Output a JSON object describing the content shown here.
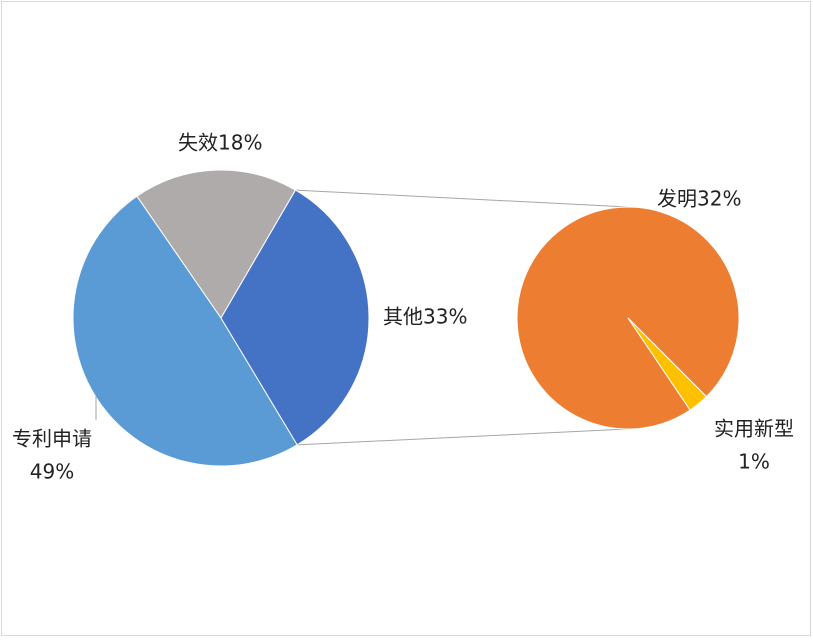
{
  "chart_data": {
    "type": "pie-of-pie",
    "categories": [
      "专利申请",
      "失效",
      "其他"
    ],
    "values": [
      49,
      18,
      33
    ],
    "value_labels": [
      "49%",
      "18%",
      "33%"
    ],
    "colors": [
      "#5b9bd5",
      "#afabab",
      "#4472c4"
    ],
    "secondary": {
      "categories": [
        "发明",
        "实用新型"
      ],
      "values": [
        32,
        1
      ],
      "value_labels": [
        "32%",
        "1%"
      ],
      "colors": [
        "#ed7d31",
        "#ffc000"
      ]
    }
  }
}
